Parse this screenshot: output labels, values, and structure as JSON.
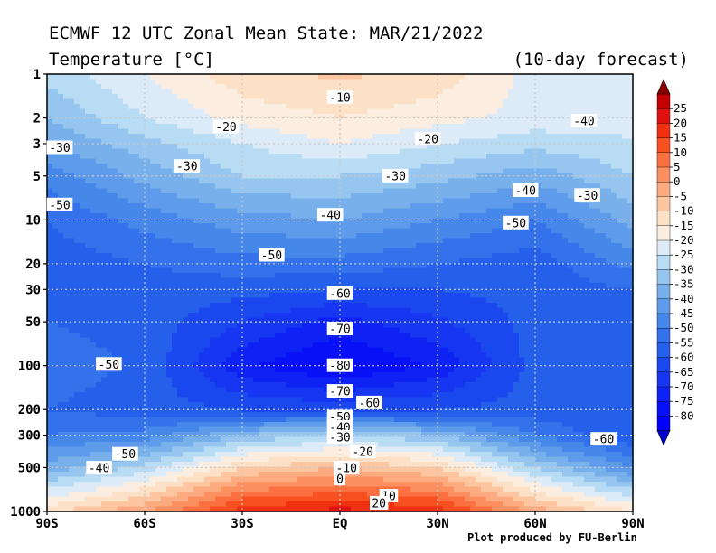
{
  "title": "ECMWF 12 UTC Zonal Mean State: MAR/21/2022",
  "subtitle": "Temperature [°C]",
  "forecast_note": "(10-day forecast)",
  "credit": "Plot produced by FU-Berlin",
  "chart_data": {
    "type": "heatmap",
    "title": "ECMWF 12 UTC Zonal Mean State: MAR/21/2022",
    "variable": "Temperature [°C]",
    "x_ticks": [
      "90S",
      "60S",
      "30S",
      "EQ",
      "30N",
      "60N",
      "90N"
    ],
    "y_ticks": [
      "1",
      "2",
      "3",
      "5",
      "10",
      "20",
      "30",
      "50",
      "100",
      "200",
      "300",
      "500",
      "1000"
    ],
    "y_scale": "log (pressure, decreasing upward)",
    "lat": [
      -90,
      -60,
      -30,
      0,
      30,
      60,
      90
    ],
    "pressure": [
      1,
      2,
      3,
      5,
      10,
      20,
      30,
      50,
      100,
      200,
      300,
      500,
      1000
    ],
    "z": [
      [
        -28,
        -20,
        -12,
        -9,
        -12,
        -22,
        -22
      ],
      [
        -35,
        -25,
        -18,
        -15,
        -18,
        -22,
        -22
      ],
      [
        -40,
        -32,
        -25,
        -20,
        -25,
        -28,
        -26
      ],
      [
        -48,
        -38,
        -30,
        -30,
        -33,
        -38,
        -30
      ],
      [
        -55,
        -48,
        -42,
        -40,
        -45,
        -50,
        -38
      ],
      [
        -58,
        -55,
        -52,
        -52,
        -55,
        -58,
        -48
      ],
      [
        -58,
        -57,
        -58,
        -60,
        -60,
        -58,
        -55
      ],
      [
        -55,
        -57,
        -65,
        -72,
        -66,
        -58,
        -58
      ],
      [
        -52,
        -56,
        -74,
        -81,
        -74,
        -58,
        -58
      ],
      [
        -55,
        -58,
        -60,
        -62,
        -60,
        -58,
        -58
      ],
      [
        -50,
        -48,
        -35,
        -30,
        -35,
        -50,
        -60
      ],
      [
        -38,
        -28,
        -10,
        -5,
        -10,
        -30,
        -45
      ],
      [
        -12,
        0,
        18,
        22,
        18,
        -2,
        -15
      ]
    ],
    "contour_labels": [
      "-10",
      "-20",
      "-20",
      "-20",
      "-40",
      "-30",
      "-30",
      "-30",
      "-50",
      "-40",
      "-40",
      "-30",
      "-50",
      "-50",
      "-60",
      "-70",
      "-50",
      "-80",
      "-70",
      "-60",
      "-50",
      "-40",
      "-30",
      "-20",
      "-50",
      "-40",
      "-10",
      "0",
      "10",
      "20",
      "-60"
    ],
    "colorbar": {
      "labels": [
        "25",
        "20",
        "15",
        "10",
        "5",
        "0",
        "-5",
        "-10",
        "-15",
        "-20",
        "-25",
        "-30",
        "-35",
        "-40",
        "-45",
        "-50",
        "-55",
        "-60",
        "-65",
        "-70",
        "-75",
        "-80"
      ],
      "colors": [
        "#c40000",
        "#e01010",
        "#f03010",
        "#f85020",
        "#fa7040",
        "#fb8f5f",
        "#fcab80",
        "#fdc6a1",
        "#fde1c6",
        "#fbeee0",
        "#dcebf7",
        "#b8dcf4",
        "#96c6f0",
        "#78b0ec",
        "#5e9bea",
        "#4688ea",
        "#3372ea",
        "#2460ea",
        "#1a48ee",
        "#1636f2",
        "#0f22f4",
        "#0810f8",
        "#0000ff"
      ]
    }
  }
}
